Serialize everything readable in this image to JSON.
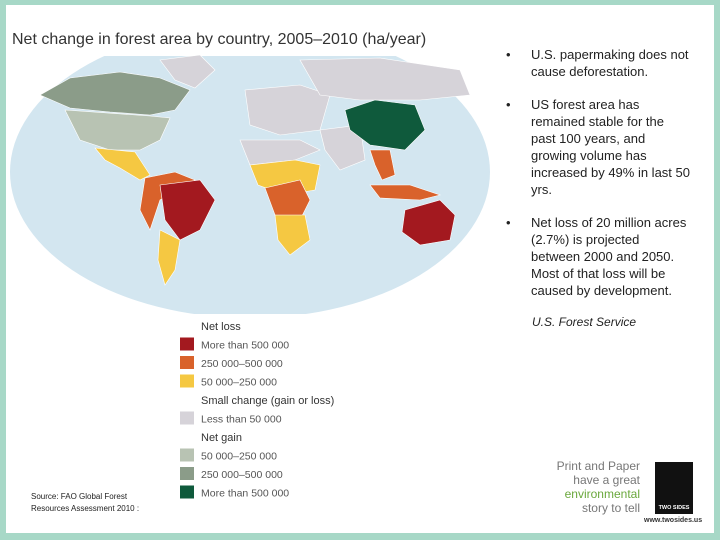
{
  "map": {
    "title": "Net change in forest area by country, 2005–2010 (ha/year)",
    "legend": {
      "groups": [
        {
          "heading": "Net loss",
          "items": [
            {
              "label": "More than 500 000",
              "color": "#a3191f"
            },
            {
              "label": "250 000–500 000",
              "color": "#d9622b"
            },
            {
              "label": "50 000–250 000",
              "color": "#f5c842"
            }
          ]
        },
        {
          "heading": "Small change (gain or loss)",
          "items": [
            {
              "label": "Less than 50 000",
              "color": "#d6d3d9"
            }
          ]
        },
        {
          "heading": "Net gain",
          "items": [
            {
              "label": "50 000–250 000",
              "color": "#b8c3b3"
            },
            {
              "label": "250 000–500 000",
              "color": "#8b9c89"
            },
            {
              "label": "More than 500 000",
              "color": "#0f5a3c"
            }
          ]
        }
      ]
    },
    "source": [
      "Source: FAO Global Forest",
      "Resources Assessment 2010 :"
    ]
  },
  "bullets": [
    "U.S. papermaking does not cause deforestation.",
    "US forest area has remained stable for the past 100 years, and growing volume has increased by 49% in last 50 yrs.",
    "Net loss of 20 million acres (2.7%) is projected between 2000 and 2050. Most of that loss will be caused by development."
  ],
  "attribution": "U.S. Forest Service",
  "logo": {
    "lines": [
      "Print and Paper",
      "have a great",
      "environmental",
      "story to tell"
    ],
    "brand": "TWO SIDES",
    "url": "www.twosides.us"
  }
}
